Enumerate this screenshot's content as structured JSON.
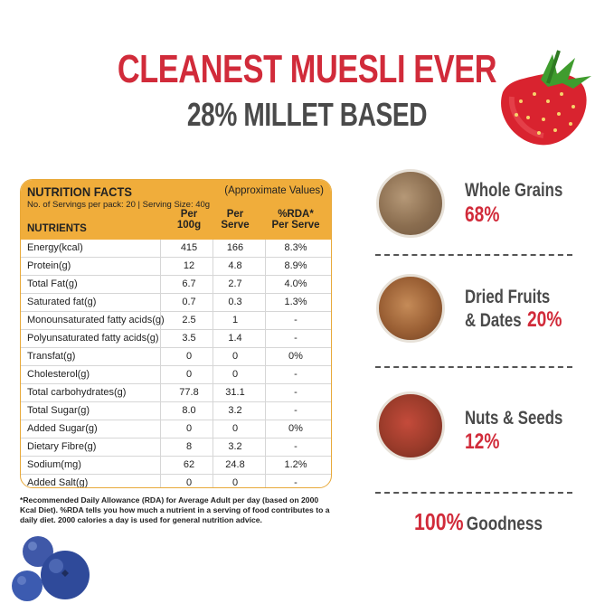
{
  "header": {
    "title": "CLEANEST MUESLI EVER",
    "subtitle": "28% MILLET BASED"
  },
  "nutrition": {
    "title": "NUTRITION FACTS",
    "approx": "(Approximate Values)",
    "servings": "No. of Servings per pack: 20 | Serving Size: 40g",
    "headers": {
      "nutrients": "NUTRIENTS",
      "per100": "Per\n100g",
      "perServe": "Per\nServe",
      "rda": "%RDA*\nPer Serve"
    },
    "rows": [
      {
        "name": "Energy(kcal)",
        "per100": "415",
        "serve": "166",
        "rda": "8.3%"
      },
      {
        "name": "Protein(g)",
        "per100": "12",
        "serve": "4.8",
        "rda": "8.9%"
      },
      {
        "name": "Total Fat(g)",
        "per100": "6.7",
        "serve": "2.7",
        "rda": "4.0%"
      },
      {
        "name": "Saturated fat(g)",
        "per100": "0.7",
        "serve": "0.3",
        "rda": "1.3%"
      },
      {
        "name": "Monounsaturated fatty acids(g)",
        "per100": "2.5",
        "serve": "1",
        "rda": "-"
      },
      {
        "name": "Polyunsaturated fatty acids(g)",
        "per100": "3.5",
        "serve": "1.4",
        "rda": "-"
      },
      {
        "name": "Transfat(g)",
        "per100": "0",
        "serve": "0",
        "rda": "0%"
      },
      {
        "name": "Cholesterol(g)",
        "per100": "0",
        "serve": "0",
        "rda": "-"
      },
      {
        "name": "Total carbohydrates(g)",
        "per100": "77.8",
        "serve": "31.1",
        "rda": "-"
      },
      {
        "name": "Total Sugar(g)",
        "per100": "8.0",
        "serve": "3.2",
        "rda": "-"
      },
      {
        "name": "Added Sugar(g)",
        "per100": "0",
        "serve": "0",
        "rda": "0%"
      },
      {
        "name": "Dietary Fibre(g)",
        "per100": "8",
        "serve": "3.2",
        "rda": "-"
      },
      {
        "name": "Sodium(mg)",
        "per100": "62",
        "serve": "24.8",
        "rda": "1.2%"
      },
      {
        "name": "Added Salt(g)",
        "per100": "0",
        "serve": "0",
        "rda": "-"
      }
    ],
    "footnote": "*Recommended Daily Allowance (RDA) for Average Adult per day (based on 2000 Kcal Diet). %RDA tells you how much a nutrient in a serving of food contributes to a daily diet. 2000 calories a day is used for general nutrition advice."
  },
  "features": [
    {
      "label": "Whole Grains",
      "pct": "68%"
    },
    {
      "label_line1": "Dried Fruits",
      "label_line2": "& Dates",
      "pct": "20%"
    },
    {
      "label": "Nuts & Seeds",
      "pct": "12%"
    }
  ],
  "goodness": {
    "pct": "100%",
    "word": "Goodness"
  },
  "colors": {
    "accent_red": "#d12b3a",
    "header_orange": "#f0ad3b",
    "text_gray": "#4a4a4a"
  },
  "icons": [
    "strawberry-icon",
    "blueberry-icon",
    "whole-grains-icon",
    "dried-fruits-icon",
    "nuts-seeds-icon"
  ]
}
